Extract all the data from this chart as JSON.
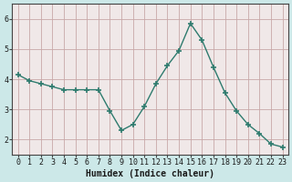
{
  "xlabel": "Humidex (Indice chaleur)",
  "ylabel": "",
  "x_values": [
    0,
    1,
    2,
    3,
    4,
    5,
    6,
    7,
    8,
    9,
    10,
    11,
    12,
    13,
    14,
    15,
    16,
    17,
    18,
    19,
    20,
    21,
    22,
    23
  ],
  "y_values": [
    4.15,
    3.95,
    3.85,
    3.75,
    3.65,
    3.65,
    3.65,
    3.65,
    2.95,
    2.3,
    2.5,
    3.1,
    3.85,
    4.45,
    4.95,
    5.85,
    5.3,
    4.4,
    3.55,
    2.95,
    2.5,
    2.2,
    1.85,
    1.75
  ],
  "line_color": "#2e7b6e",
  "marker": "+",
  "bg_color": "#cce8e8",
  "plot_bg_color": "#f0e8e8",
  "grid_color": "#c8a8a8",
  "axis_color": "#444444",
  "ylim": [
    1.5,
    6.5
  ],
  "yticks": [
    2,
    3,
    4,
    5,
    6
  ],
  "xlim": [
    -0.5,
    23.5
  ],
  "label_fontsize": 7,
  "tick_fontsize": 6
}
